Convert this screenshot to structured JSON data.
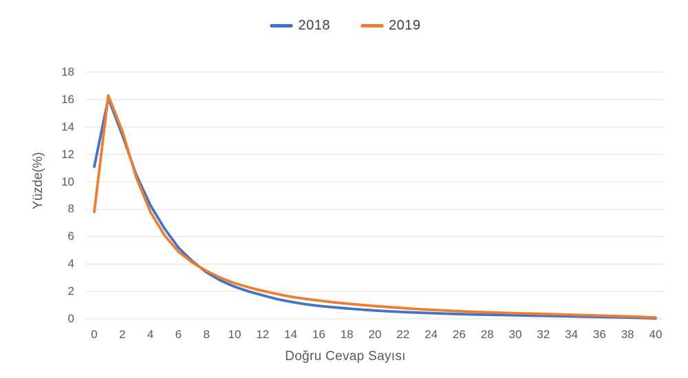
{
  "chart_data": {
    "type": "line",
    "title": "",
    "xlabel": "Doğru Cevap Sayısı",
    "ylabel": "Yüzde(%)",
    "xlim": [
      0,
      40
    ],
    "ylim": [
      0,
      18
    ],
    "x_tick_step": 2,
    "y_tick_step": 2,
    "grid": "horizontal",
    "legend_position": "top-center",
    "x": [
      0,
      1,
      2,
      3,
      4,
      5,
      6,
      7,
      8,
      9,
      10,
      11,
      12,
      13,
      14,
      15,
      16,
      17,
      18,
      19,
      20,
      21,
      22,
      23,
      24,
      25,
      26,
      27,
      28,
      29,
      30,
      31,
      32,
      33,
      34,
      35,
      36,
      37,
      38,
      39,
      40
    ],
    "series": [
      {
        "name": "2018",
        "color": "#4472C4",
        "values": [
          11.1,
          16.1,
          13.4,
          10.5,
          8.3,
          6.6,
          5.2,
          4.2,
          3.4,
          2.8,
          2.35,
          2.0,
          1.72,
          1.45,
          1.25,
          1.08,
          0.95,
          0.85,
          0.76,
          0.68,
          0.61,
          0.55,
          0.5,
          0.46,
          0.42,
          0.38,
          0.35,
          0.32,
          0.3,
          0.28,
          0.26,
          0.24,
          0.22,
          0.2,
          0.18,
          0.16,
          0.14,
          0.12,
          0.1,
          0.07,
          0.04
        ]
      },
      {
        "name": "2019",
        "color": "#ED7D31",
        "values": [
          7.8,
          16.3,
          13.7,
          10.3,
          7.8,
          6.1,
          4.9,
          4.1,
          3.5,
          3.0,
          2.6,
          2.3,
          2.05,
          1.82,
          1.62,
          1.47,
          1.34,
          1.22,
          1.12,
          1.02,
          0.94,
          0.86,
          0.79,
          0.72,
          0.66,
          0.61,
          0.56,
          0.52,
          0.48,
          0.45,
          0.42,
          0.39,
          0.36,
          0.33,
          0.3,
          0.27,
          0.24,
          0.21,
          0.18,
          0.14,
          0.09
        ]
      }
    ]
  },
  "colors": {
    "gridline": "#e9e9e9",
    "tick_text": "#595959",
    "axis_title_text": "#595959",
    "legend_text": "#404040",
    "background": "#ffffff"
  }
}
